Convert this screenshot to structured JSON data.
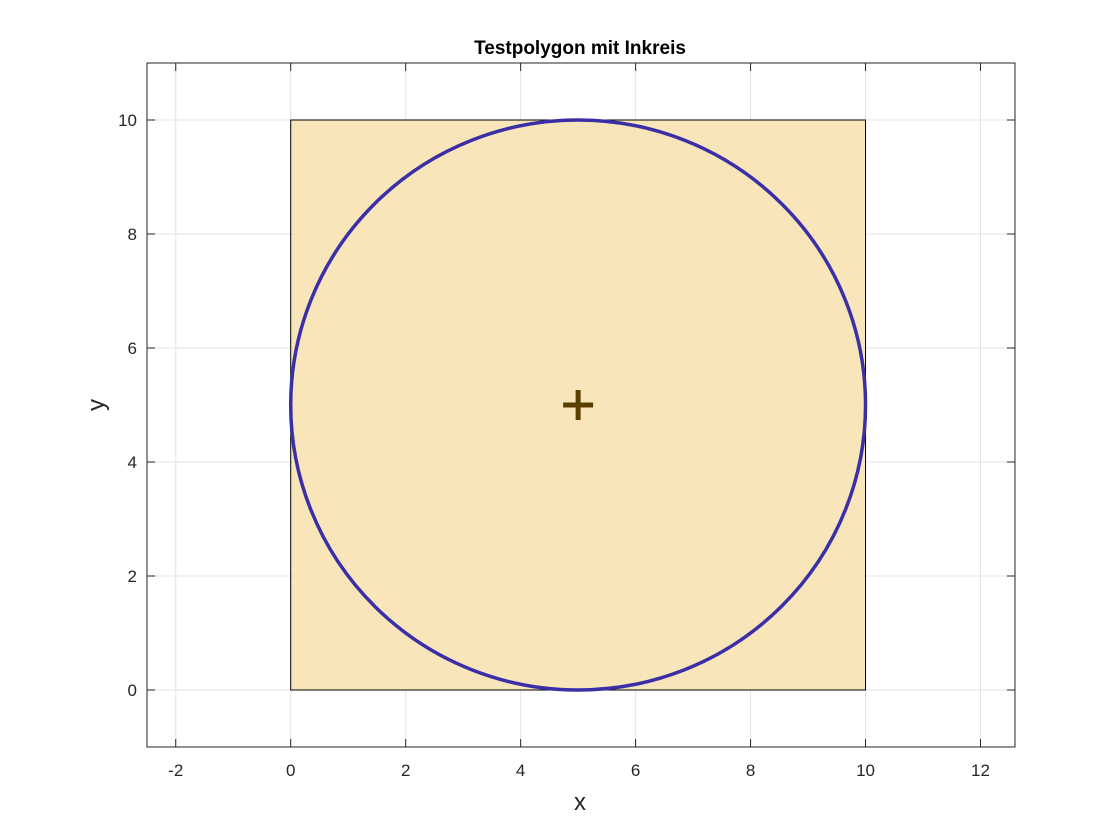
{
  "chart_data": {
    "type": "line",
    "title": "Testpolygon mit Inkreis",
    "xlabel": "x",
    "ylabel": "y",
    "xlim": [
      -2.5,
      12.6
    ],
    "ylim": [
      -1,
      11
    ],
    "xticks": [
      -2,
      0,
      2,
      4,
      6,
      8,
      10,
      12
    ],
    "yticks": [
      0,
      2,
      4,
      6,
      8,
      10
    ],
    "grid": true,
    "polygon": {
      "x": [
        0,
        10,
        10,
        0
      ],
      "y": [
        0,
        0,
        10,
        10
      ],
      "fill_color": "#f7e2b0",
      "edge_color": "#000000"
    },
    "incircle": {
      "center": [
        5,
        5
      ],
      "radius": 5,
      "color": "#3b2fa8"
    },
    "center_marker": {
      "x": 5,
      "y": 5,
      "symbol": "+",
      "color": "#5a3e00"
    }
  }
}
